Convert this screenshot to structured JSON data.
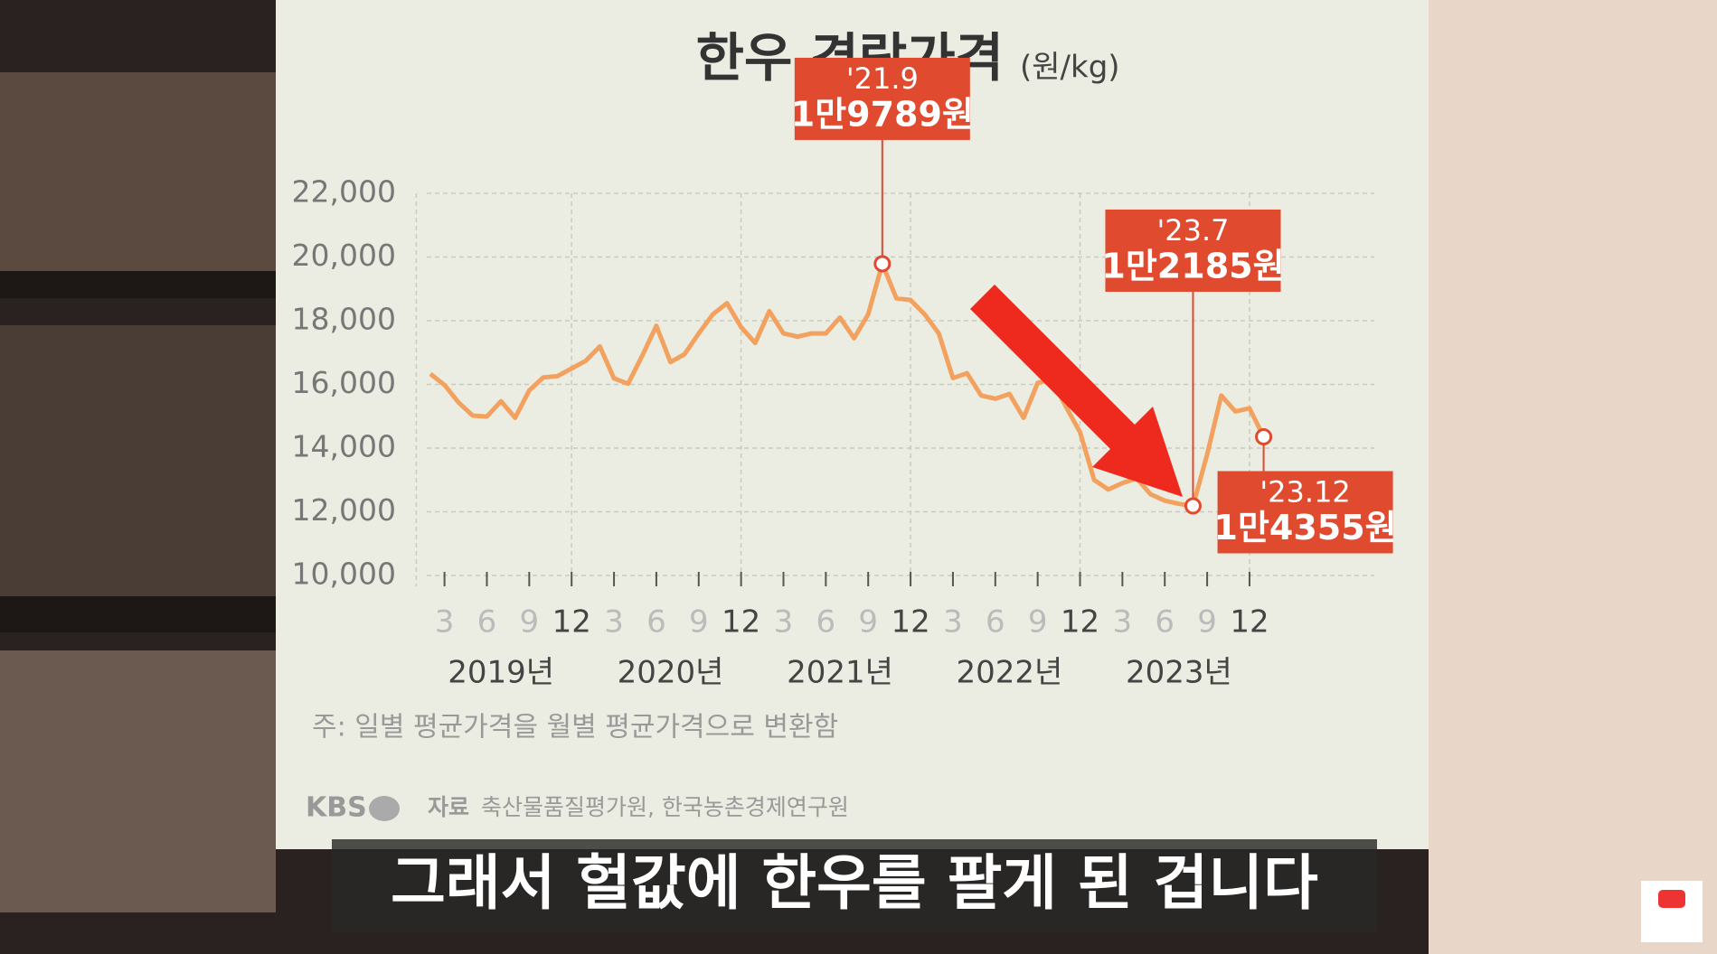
{
  "chart_data": {
    "type": "line",
    "title": "한우 경락가격",
    "unit": "(원/kg)",
    "categories": [
      null,
      "3",
      null,
      null,
      "6",
      null,
      null,
      "9",
      null,
      null,
      "12",
      null,
      null,
      "3",
      null,
      null,
      "6",
      null,
      null,
      "9",
      null,
      null,
      "12",
      null,
      null,
      "3",
      null,
      null,
      "6",
      null,
      null,
      "9",
      null,
      null,
      "12",
      null,
      null,
      "3",
      null,
      null,
      "6",
      null,
      null,
      "9",
      null,
      null,
      "12",
      null,
      null,
      "3",
      null,
      null,
      "6",
      null,
      null,
      "9",
      null,
      null,
      "12",
      null
    ],
    "x_groups": [
      "2019년",
      "2020년",
      "2021년",
      "2022년",
      "2023년"
    ],
    "values": [
      16330,
      15980,
      15430,
      15020,
      14990,
      15470,
      14950,
      15810,
      16220,
      16260,
      16500,
      16740,
      17190,
      16190,
      16020,
      16900,
      17840,
      16700,
      16950,
      17600,
      18200,
      18550,
      17800,
      17300,
      18300,
      17600,
      17500,
      17600,
      17600,
      18100,
      17450,
      18200,
      19789,
      18700,
      18650,
      18200,
      17600,
      16200,
      16350,
      15650,
      15550,
      15700,
      14950,
      16050,
      16150,
      15300,
      14500,
      13000,
      12700,
      12900,
      13050,
      12550,
      12350,
      12250,
      12185,
      13800,
      15650,
      15150,
      15250,
      14355
    ],
    "value_labels": [
      null,
      null,
      null,
      null,
      null,
      null,
      null,
      null,
      null,
      null,
      null,
      null,
      null,
      null,
      null,
      null,
      null,
      null,
      null,
      null,
      null,
      null,
      null,
      null,
      null,
      null,
      null,
      null,
      null,
      null,
      null,
      null,
      "1만9789원",
      null,
      null,
      null,
      null,
      null,
      null,
      null,
      null,
      null,
      null,
      null,
      null,
      null,
      null,
      null,
      null,
      null,
      null,
      null,
      null,
      null,
      "1만2185원",
      null,
      null,
      null,
      null,
      "1만4355원"
    ],
    "point_dates": [
      null,
      null,
      null,
      null,
      null,
      null,
      null,
      null,
      null,
      null,
      null,
      null,
      null,
      null,
      null,
      null,
      null,
      null,
      null,
      null,
      null,
      null,
      null,
      null,
      null,
      null,
      null,
      null,
      null,
      null,
      null,
      null,
      "'21.9",
      null,
      null,
      null,
      null,
      null,
      null,
      null,
      null,
      null,
      null,
      null,
      null,
      null,
      null,
      null,
      null,
      null,
      null,
      null,
      null,
      null,
      "'23.7",
      null,
      null,
      null,
      null,
      "'23.12"
    ],
    "color": "#f3a15f",
    "ylim": [
      10000,
      22000
    ],
    "yticks": [
      {
        "value": 10000,
        "label": "10,000"
      },
      {
        "value": 12000,
        "label": "12,000"
      },
      {
        "value": 14000,
        "label": "14,000"
      },
      {
        "value": 16000,
        "label": "16,000"
      },
      {
        "value": 18000,
        "label": "18,000"
      },
      {
        "value": 20000,
        "label": "20,000"
      },
      {
        "value": 22000,
        "label": "22,000"
      }
    ],
    "grid": true,
    "note": "주: 일별 평균가격을 월별 평균가격으로 변환함",
    "logo": "KBS",
    "source_label": "자료",
    "source": "축산물품질평가원, 한국농촌경제연구원"
  },
  "caption": "그래서 헐값에 한우를 팔게 된 겁니다"
}
